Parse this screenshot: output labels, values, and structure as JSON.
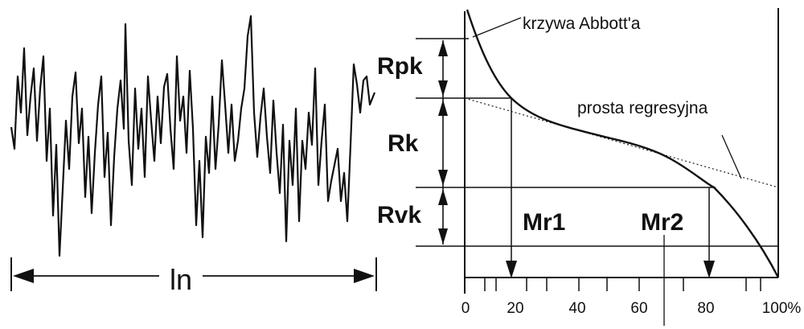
{
  "labels": {
    "ln": "ln",
    "rpk": "Rpk",
    "rk": "Rk",
    "rvk": "Rvk",
    "mr1": "Mr1",
    "mr2": "Mr2",
    "abbott_curve": "krzywa Abbott'a",
    "regression_line": "prosta regresyjna"
  },
  "axis": {
    "ticks": [
      "0",
      "20",
      "40",
      "60",
      "80",
      "100%"
    ]
  },
  "colors": {
    "ink": "#111111",
    "background": "#ffffff"
  }
}
